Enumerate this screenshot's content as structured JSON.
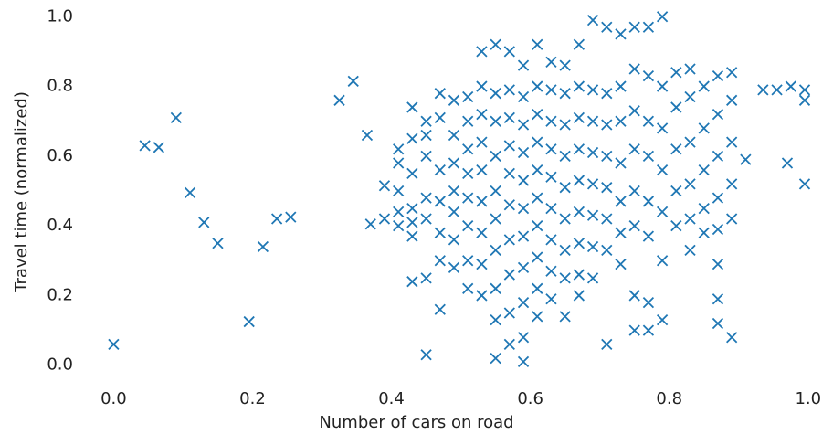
{
  "chart_data": {
    "type": "scatter",
    "x_label": "Number of cars on road",
    "y_label": "Travel time (normalized)",
    "xlim": [
      -0.04,
      1.02
    ],
    "ylim": [
      -0.04,
      1.04
    ],
    "xticks": [
      {
        "value": 0,
        "label": "0.0"
      },
      0.2,
      0.4,
      0.6,
      0.8,
      {
        "value": 1,
        "label": "1.0"
      }
    ],
    "yticks": [
      {
        "value": 0,
        "label": "0.0"
      },
      0.2,
      0.4,
      0.6,
      0.8,
      {
        "value": 1,
        "label": "1.0"
      }
    ],
    "marker": "x",
    "series": [
      {
        "color": "#1f77b4",
        "x": [
          0.0,
          0.045,
          0.065,
          0.09,
          0.11,
          0.13,
          0.15,
          0.195,
          0.215,
          0.235,
          0.255,
          0.325,
          0.345,
          0.365,
          0.37,
          0.39,
          0.39,
          0.41,
          0.41,
          0.41,
          0.41,
          0.41,
          0.43,
          0.43,
          0.43,
          0.43,
          0.43,
          0.43,
          0.43,
          0.45,
          0.45,
          0.45,
          0.45,
          0.45,
          0.45,
          0.45,
          0.47,
          0.47,
          0.47,
          0.47,
          0.47,
          0.47,
          0.47,
          0.49,
          0.49,
          0.49,
          0.49,
          0.49,
          0.49,
          0.49,
          0.51,
          0.51,
          0.51,
          0.51,
          0.51,
          0.51,
          0.51,
          0.51,
          0.53,
          0.53,
          0.53,
          0.53,
          0.53,
          0.53,
          0.53,
          0.53,
          0.53,
          0.55,
          0.55,
          0.55,
          0.55,
          0.55,
          0.55,
          0.55,
          0.55,
          0.55,
          0.55,
          0.57,
          0.57,
          0.57,
          0.57,
          0.57,
          0.57,
          0.57,
          0.57,
          0.57,
          0.57,
          0.59,
          0.59,
          0.59,
          0.59,
          0.59,
          0.59,
          0.59,
          0.59,
          0.59,
          0.59,
          0.59,
          0.61,
          0.61,
          0.61,
          0.61,
          0.61,
          0.61,
          0.61,
          0.61,
          0.61,
          0.61,
          0.63,
          0.63,
          0.63,
          0.63,
          0.63,
          0.63,
          0.63,
          0.63,
          0.63,
          0.65,
          0.65,
          0.65,
          0.65,
          0.65,
          0.65,
          0.65,
          0.65,
          0.65,
          0.67,
          0.67,
          0.67,
          0.67,
          0.67,
          0.67,
          0.67,
          0.67,
          0.67,
          0.69,
          0.69,
          0.69,
          0.69,
          0.69,
          0.69,
          0.69,
          0.69,
          0.71,
          0.71,
          0.71,
          0.71,
          0.71,
          0.71,
          0.71,
          0.71,
          0.73,
          0.73,
          0.73,
          0.73,
          0.73,
          0.73,
          0.73,
          0.75,
          0.75,
          0.75,
          0.75,
          0.75,
          0.75,
          0.75,
          0.75,
          0.77,
          0.77,
          0.77,
          0.77,
          0.77,
          0.77,
          0.77,
          0.77,
          0.79,
          0.79,
          0.79,
          0.79,
          0.79,
          0.79,
          0.79,
          0.81,
          0.81,
          0.81,
          0.81,
          0.81,
          0.83,
          0.83,
          0.83,
          0.83,
          0.83,
          0.83,
          0.85,
          0.85,
          0.85,
          0.85,
          0.85,
          0.87,
          0.87,
          0.87,
          0.87,
          0.87,
          0.87,
          0.87,
          0.87,
          0.89,
          0.89,
          0.89,
          0.89,
          0.89,
          0.89,
          0.91,
          0.935,
          0.955,
          0.975,
          0.995,
          0.995,
          0.97,
          0.995
        ],
        "y": [
          0.06,
          0.63,
          0.625,
          0.71,
          0.495,
          0.41,
          0.35,
          0.125,
          0.34,
          0.42,
          0.425,
          0.76,
          0.815,
          0.66,
          0.405,
          0.42,
          0.515,
          0.58,
          0.62,
          0.44,
          0.4,
          0.5,
          0.74,
          0.65,
          0.55,
          0.45,
          0.41,
          0.37,
          0.24,
          0.7,
          0.66,
          0.6,
          0.48,
          0.42,
          0.25,
          0.03,
          0.78,
          0.71,
          0.56,
          0.47,
          0.38,
          0.3,
          0.16,
          0.76,
          0.66,
          0.58,
          0.5,
          0.44,
          0.36,
          0.28,
          0.77,
          0.7,
          0.62,
          0.55,
          0.48,
          0.4,
          0.3,
          0.22,
          0.8,
          0.72,
          0.64,
          0.56,
          0.47,
          0.38,
          0.29,
          0.2,
          0.9,
          0.92,
          0.78,
          0.7,
          0.6,
          0.5,
          0.42,
          0.33,
          0.22,
          0.13,
          0.02,
          0.9,
          0.79,
          0.71,
          0.63,
          0.55,
          0.46,
          0.36,
          0.26,
          0.15,
          0.06,
          0.86,
          0.77,
          0.69,
          0.61,
          0.53,
          0.45,
          0.37,
          0.28,
          0.18,
          0.08,
          0.01,
          0.92,
          0.8,
          0.72,
          0.64,
          0.56,
          0.48,
          0.4,
          0.31,
          0.22,
          0.14,
          0.87,
          0.79,
          0.7,
          0.62,
          0.54,
          0.45,
          0.36,
          0.27,
          0.19,
          0.86,
          0.78,
          0.69,
          0.6,
          0.51,
          0.42,
          0.33,
          0.25,
          0.14,
          0.92,
          0.8,
          0.71,
          0.62,
          0.53,
          0.44,
          0.35,
          0.26,
          0.2,
          0.99,
          0.79,
          0.7,
          0.61,
          0.52,
          0.43,
          0.34,
          0.25,
          0.97,
          0.78,
          0.69,
          0.6,
          0.51,
          0.42,
          0.33,
          0.06,
          0.95,
          0.8,
          0.7,
          0.58,
          0.47,
          0.38,
          0.29,
          0.97,
          0.85,
          0.73,
          0.62,
          0.5,
          0.4,
          0.2,
          0.1,
          0.97,
          0.83,
          0.7,
          0.6,
          0.47,
          0.37,
          0.18,
          0.1,
          1.0,
          0.8,
          0.68,
          0.56,
          0.44,
          0.3,
          0.13,
          0.84,
          0.74,
          0.62,
          0.5,
          0.4,
          0.85,
          0.77,
          0.64,
          0.52,
          0.42,
          0.33,
          0.8,
          0.68,
          0.56,
          0.45,
          0.38,
          0.83,
          0.72,
          0.6,
          0.48,
          0.39,
          0.29,
          0.19,
          0.12,
          0.84,
          0.76,
          0.64,
          0.52,
          0.42,
          0.08,
          0.59,
          0.79,
          0.79,
          0.8,
          0.79,
          0.76,
          0.58,
          0.52
        ]
      }
    ]
  }
}
